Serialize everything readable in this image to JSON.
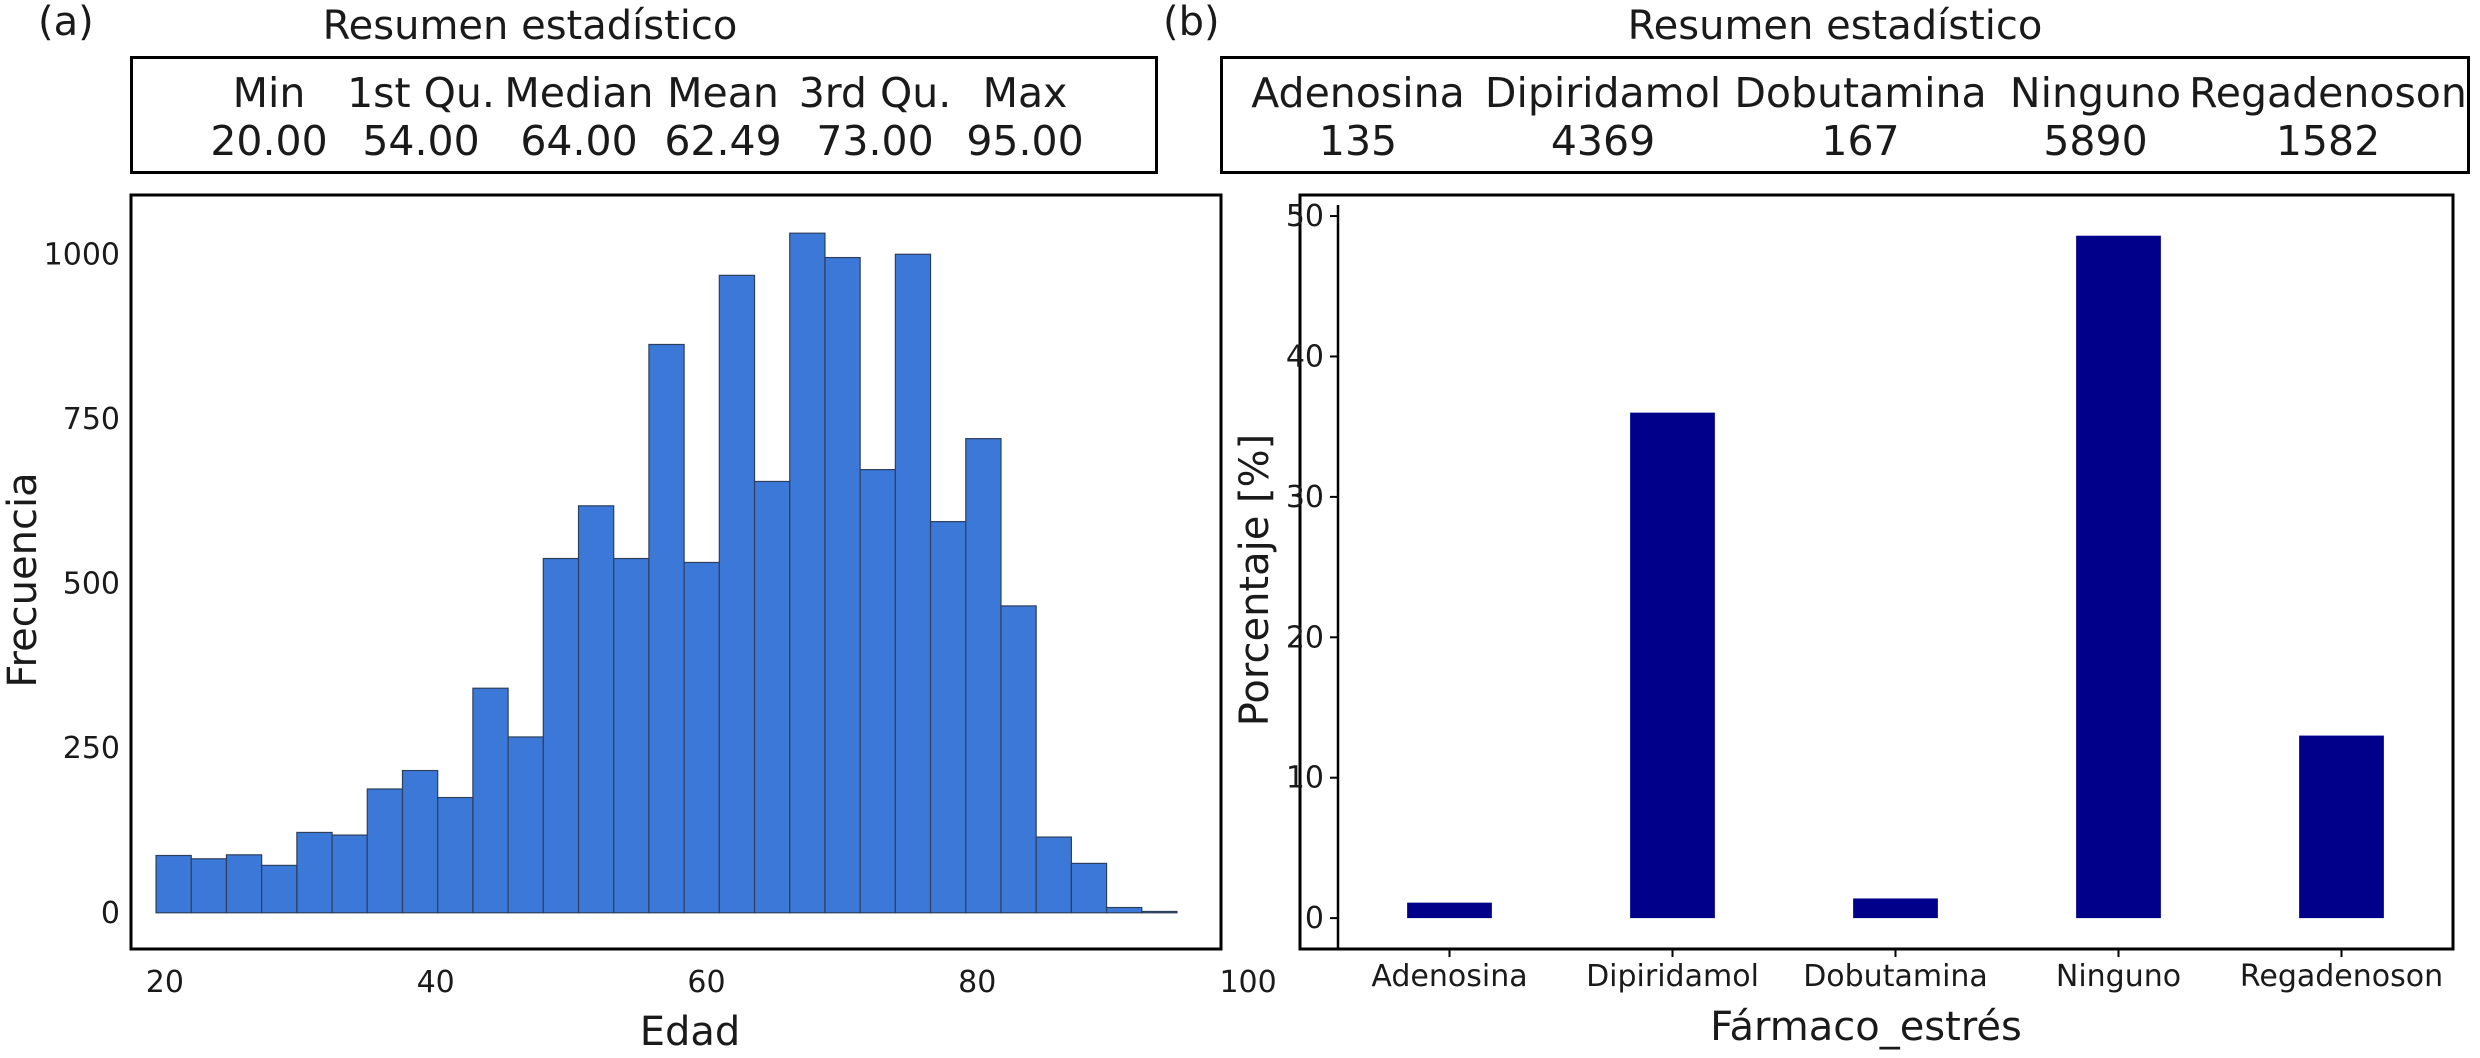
{
  "panel_a": {
    "label": "(a)",
    "summary_title": "Resumen estadístico",
    "summary": [
      {
        "name": "Min",
        "value": "20.00"
      },
      {
        "name": "1st Qu.",
        "value": "54.00"
      },
      {
        "name": "Median",
        "value": "64.00"
      },
      {
        "name": "Mean",
        "value": "62.49"
      },
      {
        "name": "3rd Qu.",
        "value": "73.00"
      },
      {
        "name": "Max",
        "value": "95.00"
      }
    ]
  },
  "panel_b": {
    "label": "(b)",
    "summary_title": "Resumen estadístico",
    "summary": [
      {
        "name": "Adenosina",
        "value": "135"
      },
      {
        "name": "Dipiridamol",
        "value": "4369"
      },
      {
        "name": "Dobutamina",
        "value": "167"
      },
      {
        "name": "Ninguno",
        "value": "5890"
      },
      {
        "name": "Regadenoson",
        "value": "1582"
      }
    ]
  },
  "chart_data": [
    {
      "type": "bar",
      "subtype": "histogram",
      "xlabel": "Edad",
      "ylabel": "Frecuencia",
      "xlim": [
        17.5,
        98
      ],
      "ylim": [
        -55,
        1090
      ],
      "xticks": [
        20,
        40,
        60,
        80,
        100
      ],
      "yticks": [
        0,
        250,
        500,
        750,
        1000
      ],
      "bar_color": "#3c78d8",
      "edge_color": "#2e3f5c",
      "bin_start": 19.35,
      "bin_width": 2.6,
      "values": [
        87,
        82,
        88,
        72,
        122,
        118,
        188,
        216,
        175,
        341,
        267,
        538,
        618,
        538,
        863,
        532,
        968,
        655,
        1032,
        995,
        673,
        1000,
        594,
        720,
        466,
        115,
        75,
        8,
        2
      ]
    },
    {
      "type": "bar",
      "xlabel": "Fármaco_estrés",
      "ylabel": "Porcentaje [%]",
      "categories": [
        "Adenosina",
        "Dipiridamol",
        "Dobutamina",
        "Ninguno",
        "Regadenoson"
      ],
      "values": [
        1.1,
        36.0,
        1.4,
        48.6,
        13.0
      ],
      "ylim": [
        -2.2,
        51.5
      ],
      "yticks": [
        0,
        10,
        20,
        30,
        40,
        50
      ],
      "bar_color": "#00008b"
    }
  ]
}
